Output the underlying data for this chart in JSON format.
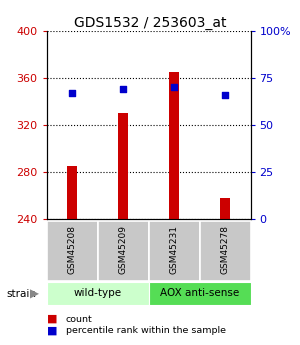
{
  "title": "GDS1532 / 253603_at",
  "samples": [
    "GSM45208",
    "GSM45209",
    "GSM45231",
    "GSM45278"
  ],
  "bar_values": [
    285,
    330,
    365,
    258
  ],
  "percentile_values": [
    67,
    69,
    70,
    66
  ],
  "bar_bottom": 240,
  "ylim_left": [
    240,
    400
  ],
  "ylim_right": [
    0,
    100
  ],
  "yticks_left": [
    240,
    280,
    320,
    360,
    400
  ],
  "yticks_right": [
    0,
    25,
    50,
    75,
    100
  ],
  "ytick_labels_right": [
    "0",
    "25",
    "50",
    "75",
    "100%"
  ],
  "bar_color": "#cc0000",
  "point_color": "#0000cc",
  "bar_width": 0.18,
  "group_labels": [
    "wild-type",
    "AOX anti-sense"
  ],
  "group_ranges": [
    [
      0,
      2
    ],
    [
      2,
      4
    ]
  ],
  "group_colors_light": [
    "#ccffcc",
    "#55dd55"
  ],
  "strain_label": "strain",
  "legend_items": [
    {
      "label": "count",
      "color": "#cc0000"
    },
    {
      "label": "percentile rank within the sample",
      "color": "#0000cc"
    }
  ],
  "bg_color": "#ffffff"
}
